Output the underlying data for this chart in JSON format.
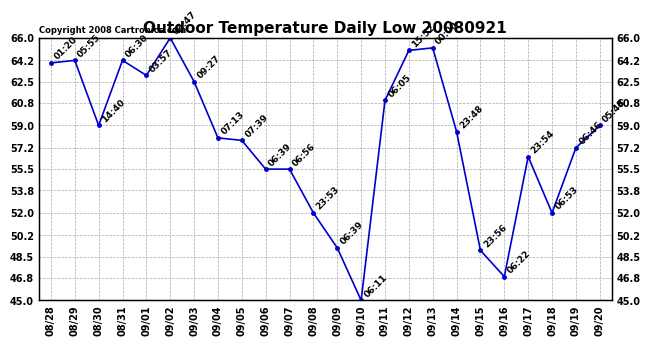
{
  "title": "Outdoor Temperature Daily Low 20080921",
  "copyright": "Copyright 2008 Cartronics.com",
  "x_labels": [
    "08/28",
    "08/29",
    "08/30",
    "08/31",
    "09/01",
    "09/02",
    "09/03",
    "09/04",
    "09/05",
    "09/06",
    "09/07",
    "09/08",
    "09/09",
    "09/10",
    "09/11",
    "09/12",
    "09/13",
    "09/14",
    "09/15",
    "09/16",
    "09/17",
    "09/18",
    "09/19",
    "09/20"
  ],
  "y_values": [
    64.0,
    64.2,
    59.0,
    64.2,
    63.0,
    66.0,
    62.5,
    58.0,
    57.8,
    55.5,
    55.5,
    52.0,
    49.2,
    45.0,
    61.0,
    65.0,
    65.2,
    58.5,
    49.0,
    46.9,
    56.5,
    52.0,
    57.2,
    59.0
  ],
  "point_labels": [
    "01:20",
    "05:55",
    "14:40",
    "06:30",
    "03:57",
    "03:47",
    "09:27",
    "07:13",
    "07:39",
    "06:39",
    "06:56",
    "23:53",
    "06:39",
    "06:11",
    "06:05",
    "15:52",
    "00:00",
    "23:48",
    "23:56",
    "06:22",
    "23:54",
    "06:53",
    "06:46",
    "05:48"
  ],
  "line_color": "#0000cc",
  "marker_color": "#0000cc",
  "background_color": "#ffffff",
  "grid_color": "#aaaaaa",
  "ylim": [
    45.0,
    66.0
  ],
  "yticks": [
    45.0,
    46.8,
    48.5,
    50.2,
    52.0,
    53.8,
    55.5,
    57.2,
    59.0,
    60.8,
    62.5,
    64.2,
    66.0
  ],
  "ytick_labels": [
    "45.0",
    "46.8",
    "48.5",
    "50.2",
    "52.0",
    "53.8",
    "55.5",
    "57.2",
    "59.0",
    "60.8",
    "62.5",
    "64.2",
    "66.0"
  ],
  "title_fontsize": 11,
  "label_fontsize": 6.5,
  "tick_fontsize": 7,
  "copyright_fontsize": 6
}
